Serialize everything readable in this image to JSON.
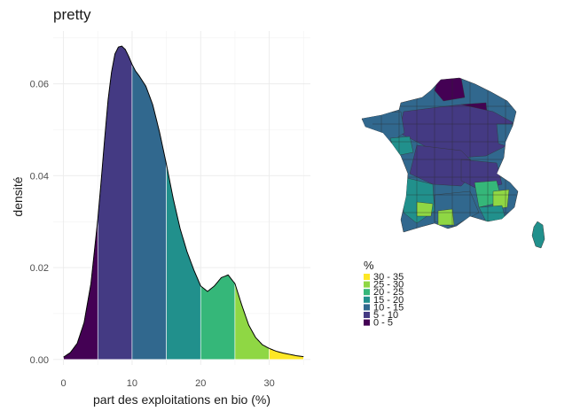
{
  "chart_data": [
    {
      "type": "area",
      "title": "pretty",
      "xlabel": "part des exploitations en bio (%)",
      "ylabel": "densité",
      "xlim": [
        -1.5,
        36
      ],
      "ylim": [
        -0.0012,
        0.0715
      ],
      "x_ticks": [
        0,
        10,
        20,
        30
      ],
      "x_tick_labels": [
        "0",
        "10",
        "20",
        "30"
      ],
      "y_ticks": [
        0,
        0.02,
        0.04,
        0.06
      ],
      "y_tick_labels": [
        "0.00",
        "0.02",
        "0.04",
        "0.06"
      ],
      "grid": true,
      "density_points": {
        "x": [
          0,
          1,
          2,
          3,
          4,
          5,
          5.5,
          6,
          6.5,
          7,
          7.5,
          8,
          8.5,
          9,
          9.5,
          10,
          10.5,
          11,
          12,
          13,
          14,
          15,
          16,
          17,
          18,
          19,
          20,
          21,
          22,
          23,
          24,
          25,
          26,
          27,
          28,
          29,
          30,
          31,
          32,
          33,
          34,
          35
        ],
        "y": [
          0.0005,
          0.0015,
          0.0035,
          0.008,
          0.0165,
          0.0305,
          0.039,
          0.048,
          0.0565,
          0.0625,
          0.0665,
          0.068,
          0.0682,
          0.0675,
          0.066,
          0.0642,
          0.0628,
          0.0618,
          0.0595,
          0.0555,
          0.0495,
          0.0425,
          0.035,
          0.0285,
          0.0235,
          0.0195,
          0.016,
          0.0148,
          0.016,
          0.0178,
          0.0184,
          0.0165,
          0.0118,
          0.0075,
          0.0048,
          0.0032,
          0.0024,
          0.0018,
          0.0014,
          0.0011,
          0.0008,
          0.0006
        ]
      },
      "bin_breaks": [
        0,
        5,
        10,
        15,
        20,
        25,
        30,
        35
      ],
      "bin_colors": [
        "#440154",
        "#443A83",
        "#31688E",
        "#21908C",
        "#35B779",
        "#8FD744",
        "#FDE725"
      ]
    },
    {
      "type": "map",
      "legend_title": "%",
      "legend_placement": "bottom-left of map",
      "legend": [
        {
          "label": "30  -  35",
          "color": "#FDE725"
        },
        {
          "label": "25  -  30",
          "color": "#8FD744"
        },
        {
          "label": "20  -  25",
          "color": "#35B779"
        },
        {
          "label": "15  -  20",
          "color": "#21908C"
        },
        {
          "label": "10  -  15",
          "color": "#31688E"
        },
        {
          "label": "5  -  10",
          "color": "#443A83"
        },
        {
          "label": "0  -  5",
          "color": "#440154"
        }
      ]
    }
  ]
}
